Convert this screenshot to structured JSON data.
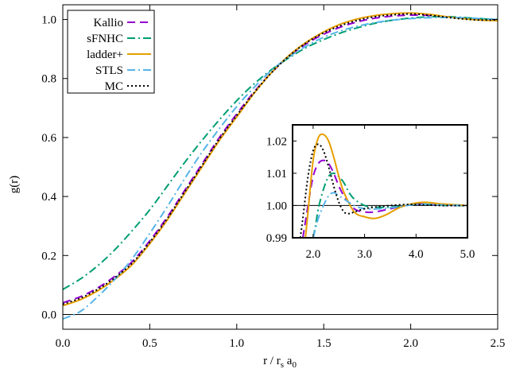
{
  "chart_data": [
    {
      "type": "line",
      "xlabel": "r  / r",
      "xlabel_sub1": "s",
      "xlabel_mid": " a",
      "xlabel_sub2": "0",
      "ylabel": "g(r)",
      "xlim": [
        0,
        2.5
      ],
      "ylim": [
        -0.05,
        1.05
      ],
      "xticks": [
        0.0,
        0.5,
        1.0,
        1.5,
        2.0,
        2.5
      ],
      "xtick_labels": [
        "0.0",
        "0.5",
        "1.0",
        "1.5",
        "2.0",
        "2.5"
      ],
      "yticks": [
        0.0,
        0.2,
        0.4,
        0.6,
        0.8,
        1.0
      ],
      "ytick_labels": [
        "0.0",
        "0.2",
        "0.4",
        "0.6",
        "0.8",
        "1.0"
      ],
      "hline": 0.0,
      "legend_position": "top-left",
      "grid": false,
      "series": [
        {
          "name": "Kallio",
          "color": "#9400d3",
          "dash": "10,6",
          "x": [
            0,
            0.1,
            0.2,
            0.3,
            0.4,
            0.5,
            0.6,
            0.7,
            0.8,
            0.9,
            1.0,
            1.1,
            1.2,
            1.3,
            1.4,
            1.5,
            1.6,
            1.7,
            1.8,
            1.9,
            2.0,
            2.1,
            2.2,
            2.3,
            2.4,
            2.5
          ],
          "y": [
            0.04,
            0.06,
            0.09,
            0.13,
            0.18,
            0.25,
            0.33,
            0.42,
            0.51,
            0.6,
            0.68,
            0.755,
            0.82,
            0.875,
            0.918,
            0.95,
            0.975,
            0.993,
            1.005,
            1.012,
            1.015,
            1.014,
            1.01,
            1.005,
            1.002,
            1.0
          ]
        },
        {
          "name": "sFNHC",
          "color": "#009e73",
          "dash": "10,4,2,4",
          "x": [
            0,
            0.1,
            0.2,
            0.3,
            0.4,
            0.5,
            0.6,
            0.7,
            0.8,
            0.9,
            1.0,
            1.1,
            1.2,
            1.3,
            1.4,
            1.5,
            1.6,
            1.7,
            1.8,
            1.9,
            2.0,
            2.1,
            2.2,
            2.3,
            2.4,
            2.5
          ],
          "y": [
            0.085,
            0.12,
            0.165,
            0.22,
            0.285,
            0.355,
            0.435,
            0.515,
            0.59,
            0.66,
            0.725,
            0.782,
            0.83,
            0.87,
            0.905,
            0.932,
            0.955,
            0.973,
            0.988,
            0.998,
            1.005,
            1.009,
            1.01,
            1.007,
            1.003,
            1.0
          ]
        },
        {
          "name": "ladder+",
          "color": "#e69f00",
          "dash": "",
          "x": [
            0,
            0.1,
            0.2,
            0.3,
            0.4,
            0.5,
            0.6,
            0.7,
            0.8,
            0.9,
            1.0,
            1.1,
            1.2,
            1.3,
            1.4,
            1.5,
            1.6,
            1.7,
            1.8,
            1.9,
            2.0,
            2.1,
            2.2,
            2.3,
            2.4,
            2.5
          ],
          "y": [
            0.03,
            0.05,
            0.08,
            0.12,
            0.17,
            0.24,
            0.32,
            0.41,
            0.5,
            0.59,
            0.67,
            0.75,
            0.82,
            0.878,
            0.923,
            0.958,
            0.985,
            1.003,
            1.014,
            1.02,
            1.022,
            1.018,
            1.01,
            1.003,
            0.998,
            0.996
          ]
        },
        {
          "name": "STLS",
          "color": "#56b4e9",
          "dash": "10,4,2,4",
          "x": [
            0,
            0.1,
            0.2,
            0.3,
            0.4,
            0.5,
            0.6,
            0.7,
            0.8,
            0.9,
            1.0,
            1.1,
            1.2,
            1.3,
            1.4,
            1.5,
            1.6,
            1.7,
            1.8,
            1.9,
            2.0,
            2.1,
            2.2,
            2.3,
            2.4,
            2.5
          ],
          "y": [
            -0.015,
            0.01,
            0.06,
            0.12,
            0.19,
            0.275,
            0.365,
            0.46,
            0.55,
            0.63,
            0.705,
            0.77,
            0.828,
            0.873,
            0.91,
            0.94,
            0.962,
            0.978,
            0.99,
            0.998,
            1.003,
            1.006,
            1.007,
            1.006,
            1.003,
            1.0
          ]
        },
        {
          "name": "MC",
          "color": "#000000",
          "dash": "2,3",
          "x": [
            0,
            0.1,
            0.2,
            0.3,
            0.4,
            0.5,
            0.6,
            0.7,
            0.8,
            0.9,
            1.0,
            1.1,
            1.2,
            1.3,
            1.4,
            1.5,
            1.6,
            1.7,
            1.8,
            1.9,
            2.0,
            2.1,
            2.2,
            2.3,
            2.4,
            2.5
          ],
          "y": [
            0.035,
            0.055,
            0.085,
            0.125,
            0.175,
            0.245,
            0.325,
            0.415,
            0.505,
            0.595,
            0.675,
            0.752,
            0.82,
            0.876,
            0.921,
            0.955,
            0.98,
            0.998,
            1.01,
            1.016,
            1.019,
            1.015,
            1.008,
            1.002,
            0.998,
            0.999
          ]
        }
      ]
    },
    {
      "type": "line",
      "role": "inset",
      "xlim": [
        1.6,
        5.0
      ],
      "ylim": [
        0.99,
        1.025
      ],
      "xticks": [
        2.0,
        3.0,
        4.0,
        5.0
      ],
      "xtick_labels": [
        "2.0",
        "3.0",
        "4.0",
        "5.0"
      ],
      "yticks": [
        0.99,
        1.0,
        1.01,
        1.02
      ],
      "ytick_labels": [
        "0.99",
        "1.00",
        "1.01",
        "1.02"
      ],
      "hline": 1.0,
      "series": [
        {
          "name": "Kallio",
          "color": "#9400d3",
          "dash": "10,6",
          "x": [
            1.8,
            1.9,
            2.0,
            2.1,
            2.2,
            2.3,
            2.4,
            2.5,
            2.6,
            2.8,
            3.0,
            3.2,
            3.5,
            3.8,
            4.0,
            4.3,
            4.6,
            5.0
          ],
          "y": [
            0.99,
            1.0,
            1.009,
            1.013,
            1.014,
            1.013,
            1.01,
            1.006,
            1.003,
            0.999,
            0.998,
            0.998,
            0.999,
            1.0,
            1.0005,
            1.0003,
            1.0,
            1.0
          ]
        },
        {
          "name": "sFNHC",
          "color": "#009e73",
          "dash": "10,4,2,4",
          "x": [
            2.0,
            2.05,
            2.1,
            2.2,
            2.3,
            2.4,
            2.5,
            2.6,
            2.7,
            2.8,
            3.0,
            3.2,
            3.5,
            3.8,
            4.0,
            4.3,
            4.6,
            5.0
          ],
          "y": [
            0.99,
            0.994,
            0.999,
            1.005,
            1.009,
            1.01,
            1.009,
            1.007,
            1.004,
            1.002,
            1.0,
            0.9995,
            0.9995,
            1.0,
            1.0005,
            1.0003,
            1.0,
            1.0
          ]
        },
        {
          "name": "ladder+",
          "color": "#e69f00",
          "dash": "",
          "x": [
            1.85,
            1.9,
            2.0,
            2.1,
            2.2,
            2.3,
            2.4,
            2.5,
            2.6,
            2.8,
            3.0,
            3.2,
            3.4,
            3.7,
            4.0,
            4.2,
            4.5,
            5.0
          ],
          "y": [
            0.99,
            0.998,
            1.014,
            1.021,
            1.022,
            1.02,
            1.015,
            1.009,
            1.004,
            0.998,
            0.9965,
            0.996,
            0.997,
            0.9995,
            1.0008,
            1.001,
            1.0005,
            1.0
          ]
        },
        {
          "name": "STLS",
          "color": "#56b4e9",
          "dash": "10,4,2,4",
          "x": [
            2.0,
            2.05,
            2.1,
            2.2,
            2.3,
            2.4,
            2.5,
            2.6,
            2.8,
            3.0,
            3.3,
            3.6,
            4.0,
            4.5,
            5.0
          ],
          "y": [
            0.99,
            0.993,
            0.996,
            1.0,
            1.003,
            1.004,
            1.003,
            1.002,
            1.0,
            0.999,
            0.999,
            0.9995,
            1.0003,
            1.0002,
            1.0
          ]
        },
        {
          "name": "MC",
          "color": "#000000",
          "dash": "2,3",
          "x": [
            1.75,
            1.8,
            1.9,
            2.0,
            2.1,
            2.2,
            2.3,
            2.4,
            2.5,
            2.6,
            2.7,
            2.8,
            3.0,
            3.2,
            3.5,
            3.8,
            4.0,
            4.5,
            5.0
          ],
          "y": [
            0.99,
            0.996,
            1.009,
            1.017,
            1.019,
            1.017,
            1.012,
            1.006,
            1.001,
            0.998,
            0.9975,
            0.998,
            0.999,
            0.9995,
            1.0,
            1.0003,
            1.0003,
            1.0,
            1.0
          ]
        }
      ]
    }
  ]
}
